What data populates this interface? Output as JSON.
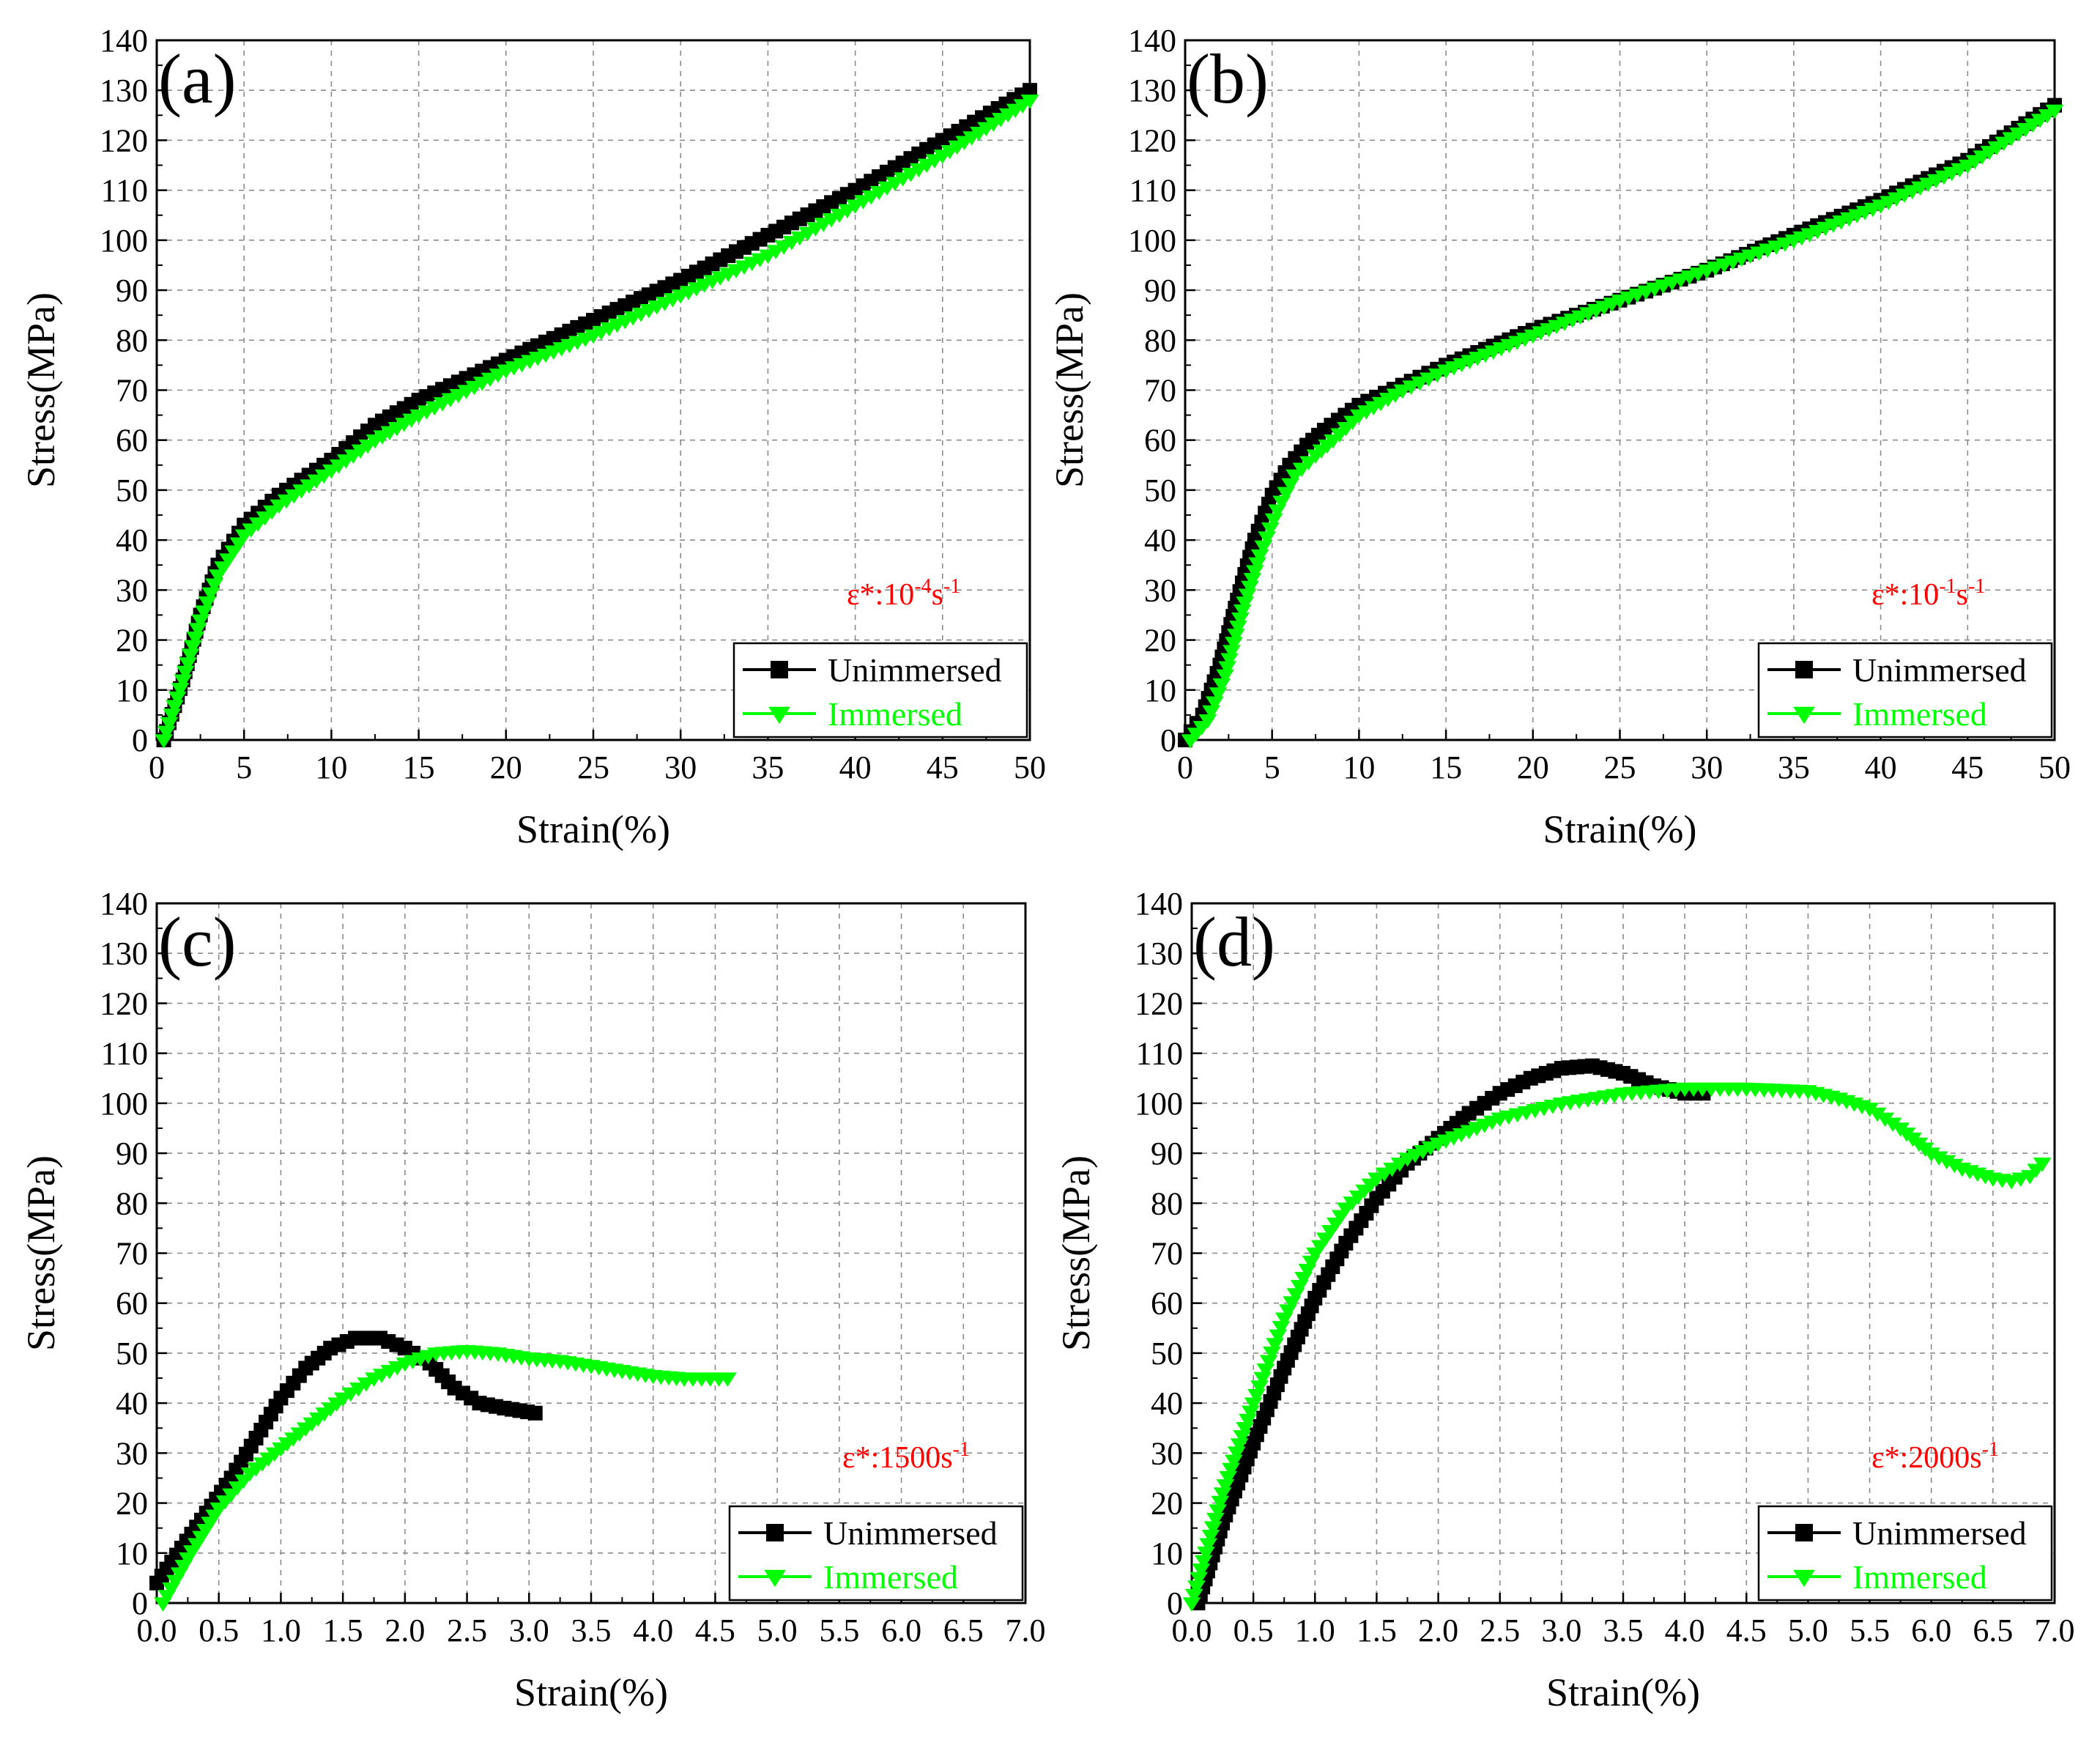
{
  "colors": {
    "unimmersed": "#000000",
    "immersed": "#00ff00",
    "rate_label": "#ff0000",
    "grid": "#8c8c8c"
  },
  "chart_data": [
    {
      "panel_label": "(a)",
      "type": "line",
      "xlabel": "Strain(%)",
      "ylabel": "Stress(MPa)",
      "xlim": [
        0,
        50
      ],
      "ylim": [
        0,
        140
      ],
      "xticks": [
        0,
        5,
        10,
        15,
        20,
        25,
        30,
        35,
        40,
        45,
        50
      ],
      "xtick_labels": [
        "0",
        "5",
        "10",
        "15",
        "20",
        "25",
        "30",
        "35",
        "40",
        "45",
        "50"
      ],
      "yticks": [
        0,
        10,
        20,
        30,
        40,
        50,
        60,
        70,
        80,
        90,
        100,
        110,
        120,
        130,
        140
      ],
      "ytick_labels": [
        "0",
        "10",
        "20",
        "30",
        "40",
        "50",
        "60",
        "70",
        "80",
        "90",
        "100",
        "110",
        "120",
        "130",
        "140"
      ],
      "grid": true,
      "rate_label": {
        "base": "ε*:10",
        "exp1": "-4",
        "mid": "s",
        "exp2": "-1"
      },
      "legend": {
        "position": "bottom-right",
        "entries": [
          "Unimmersed",
          "Immersed"
        ]
      },
      "series": [
        {
          "name": "Unimmersed",
          "marker": "square",
          "color": "#000000",
          "x": [
            0.4,
            1.5,
            2.5,
            3.5,
            5,
            7,
            10,
            12.5,
            15,
            20,
            25,
            30,
            35,
            40,
            45,
            50
          ],
          "y": [
            0,
            12,
            25,
            35,
            43,
            49,
            56,
            63,
            68,
            76,
            84,
            92,
            101,
            110,
            120,
            130
          ]
        },
        {
          "name": "Immersed",
          "marker": "triangle-down",
          "color": "#00ff00",
          "x": [
            0.4,
            1.5,
            2.5,
            3.5,
            5,
            7,
            10,
            12.5,
            15,
            20,
            25,
            30,
            35,
            40,
            45,
            50
          ],
          "y": [
            0,
            12,
            24,
            33,
            41,
            47,
            54,
            60,
            65,
            74,
            81,
            89,
            97,
            107,
            117,
            128
          ]
        }
      ]
    },
    {
      "panel_label": "(b)",
      "type": "line",
      "xlabel": "Strain(%)",
      "ylabel": "Stress(MPa)",
      "xlim": [
        0,
        50
      ],
      "ylim": [
        0,
        140
      ],
      "xticks": [
        0,
        5,
        10,
        15,
        20,
        25,
        30,
        35,
        40,
        45,
        50
      ],
      "xtick_labels": [
        "0",
        "5",
        "10",
        "15",
        "20",
        "25",
        "30",
        "35",
        "40",
        "45",
        "50"
      ],
      "yticks": [
        0,
        10,
        20,
        30,
        40,
        50,
        60,
        70,
        80,
        90,
        100,
        110,
        120,
        130,
        140
      ],
      "ytick_labels": [
        "0",
        "10",
        "20",
        "30",
        "40",
        "50",
        "60",
        "70",
        "80",
        "90",
        "100",
        "110",
        "120",
        "130",
        "140"
      ],
      "grid": true,
      "rate_label": {
        "base": "ε*:10",
        "exp1": "-1",
        "mid": "s",
        "exp2": "-1"
      },
      "legend": {
        "position": "bottom-right",
        "entries": [
          "Unimmersed",
          "Immersed"
        ]
      },
      "series": [
        {
          "name": "Unimmersed",
          "marker": "square",
          "color": "#000000",
          "x": [
            0,
            1,
            2,
            3,
            4,
            5,
            6,
            7,
            8,
            10,
            12.5,
            15,
            20,
            25,
            30,
            35,
            40,
            45,
            50
          ],
          "y": [
            0,
            5,
            15,
            28,
            40,
            49,
            55,
            59,
            62,
            67,
            71,
            75,
            82,
            88,
            94,
            101,
            108,
            116,
            127
          ]
        },
        {
          "name": "Immersed",
          "marker": "triangle-down",
          "color": "#00ff00",
          "x": [
            0.3,
            1.3,
            2.3,
            3.3,
            4.3,
            5.3,
            6.3,
            7.5,
            8.5,
            10,
            12.5,
            15,
            20,
            25,
            30,
            35,
            40,
            45,
            50
          ],
          "y": [
            0,
            4,
            13,
            26,
            37,
            46,
            53,
            57,
            60,
            65,
            70,
            74,
            81,
            88,
            94,
            100,
            107,
            115,
            126
          ]
        }
      ]
    },
    {
      "panel_label": "(c)",
      "type": "line",
      "xlabel": "Strain(%)",
      "ylabel": "Stress(MPa)",
      "xlim": [
        0,
        7
      ],
      "ylim": [
        0,
        140
      ],
      "xticks": [
        0,
        0.5,
        1,
        1.5,
        2,
        2.5,
        3,
        3.5,
        4,
        4.5,
        5,
        5.5,
        6,
        6.5,
        7
      ],
      "xtick_labels": [
        "0.0",
        "0.5",
        "1.0",
        "1.5",
        "2.0",
        "2.5",
        "3.0",
        "3.5",
        "4.0",
        "4.5",
        "5.0",
        "5.5",
        "6.0",
        "6.5",
        "7.0"
      ],
      "yticks": [
        0,
        10,
        20,
        30,
        40,
        50,
        60,
        70,
        80,
        90,
        100,
        110,
        120,
        130,
        140
      ],
      "ytick_labels": [
        "0",
        "10",
        "20",
        "30",
        "40",
        "50",
        "60",
        "70",
        "80",
        "90",
        "100",
        "110",
        "120",
        "130",
        "140"
      ],
      "grid": true,
      "rate_label": {
        "base": "ε*:1500s",
        "exp1": "-1",
        "mid": "",
        "exp2": ""
      },
      "legend": {
        "position": "bottom-right",
        "entries": [
          "Unimmersed",
          "Immersed"
        ]
      },
      "series": [
        {
          "name": "Unimmersed",
          "marker": "square",
          "color": "#000000",
          "x": [
            0,
            0.2,
            0.4,
            0.6,
            0.8,
            1.0,
            1.2,
            1.4,
            1.6,
            1.8,
            2.0,
            2.2,
            2.4,
            2.6,
            2.8,
            3.05
          ],
          "y": [
            4,
            11,
            18,
            25,
            33,
            41,
            47,
            51,
            53,
            53,
            51,
            48,
            43,
            40,
            39,
            38
          ]
        },
        {
          "name": "Immersed",
          "marker": "triangle-down",
          "color": "#00ff00",
          "x": [
            0.05,
            0.25,
            0.5,
            0.75,
            1.0,
            1.25,
            1.5,
            1.75,
            2.0,
            2.25,
            2.5,
            2.75,
            3.0,
            3.25,
            3.5,
            3.75,
            4.0,
            4.25,
            4.6
          ],
          "y": [
            0,
            9,
            19,
            26,
            31,
            36,
            41,
            45,
            48,
            50,
            50.5,
            50,
            49,
            48.5,
            47.5,
            46.5,
            45.5,
            45,
            45
          ]
        }
      ]
    },
    {
      "panel_label": "(d)",
      "type": "line",
      "xlabel": "Strain(%)",
      "ylabel": "Stress(MPa)",
      "xlim": [
        0,
        7
      ],
      "ylim": [
        0,
        140
      ],
      "xticks": [
        0,
        0.5,
        1,
        1.5,
        2,
        2.5,
        3,
        3.5,
        4,
        4.5,
        5,
        5.5,
        6,
        6.5,
        7
      ],
      "xtick_labels": [
        "0.0",
        "0.5",
        "1.0",
        "1.5",
        "2.0",
        "2.5",
        "3.0",
        "3.5",
        "4.0",
        "4.5",
        "5.0",
        "5.5",
        "6.0",
        "6.5",
        "7.0"
      ],
      "yticks": [
        0,
        10,
        20,
        30,
        40,
        50,
        60,
        70,
        80,
        90,
        100,
        110,
        120,
        130,
        140
      ],
      "ytick_labels": [
        "0",
        "10",
        "20",
        "30",
        "40",
        "50",
        "60",
        "70",
        "80",
        "90",
        "100",
        "110",
        "120",
        "130",
        "140"
      ],
      "grid": true,
      "rate_label": {
        "base": "ε*:2000s",
        "exp1": "-1",
        "mid": "",
        "exp2": ""
      },
      "legend": {
        "position": "bottom-right",
        "entries": [
          "Unimmersed",
          "Immersed"
        ]
      },
      "series": [
        {
          "name": "Unimmersed",
          "marker": "square",
          "color": "#000000",
          "x": [
            0.05,
            0.25,
            0.5,
            0.75,
            1.0,
            1.25,
            1.5,
            1.75,
            2.0,
            2.25,
            2.5,
            2.75,
            3.0,
            3.25,
            3.5,
            3.75,
            4.0,
            4.15
          ],
          "y": [
            0,
            16,
            32,
            47,
            61,
            72,
            81,
            88,
            93,
            98,
            102,
            105,
            107,
            107.5,
            106,
            103.5,
            102,
            102
          ]
        },
        {
          "name": "Immersed",
          "marker": "triangle-down",
          "color": "#00ff00",
          "x": [
            0,
            0.25,
            0.5,
            0.75,
            1.0,
            1.25,
            1.5,
            1.75,
            2.0,
            2.5,
            3.0,
            3.5,
            4.0,
            4.5,
            5.0,
            5.25,
            5.5,
            5.75,
            6.0,
            6.25,
            6.5,
            6.65,
            6.8,
            6.9
          ],
          "y": [
            0,
            22,
            40,
            57,
            70,
            79,
            85,
            89,
            92,
            97,
            100,
            102,
            103,
            103,
            102.5,
            101,
            99,
            95,
            90,
            87,
            85,
            84.5,
            85.5,
            88
          ]
        }
      ]
    }
  ]
}
